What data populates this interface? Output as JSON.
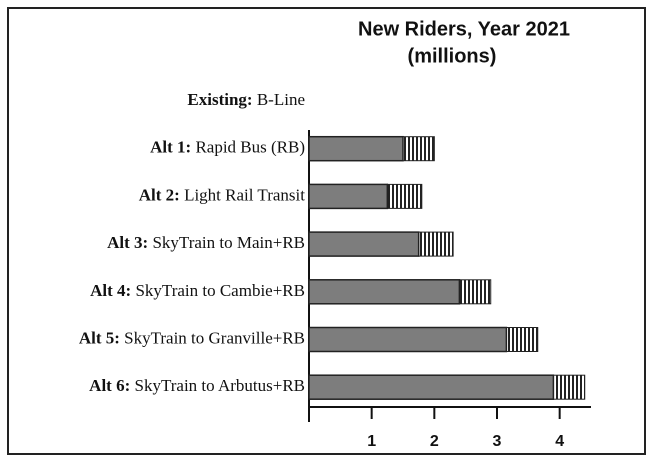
{
  "chart_data": {
    "type": "bar",
    "orientation": "horizontal",
    "title": "New Riders, Year 2021",
    "subtitle": "(millions)",
    "categories": [
      {
        "label": "Existing:",
        "name": "B-Line"
      },
      {
        "label": "Alt 1:",
        "name": "Rapid Bus (RB)"
      },
      {
        "label": "Alt 2:",
        "name": "Light Rail Transit"
      },
      {
        "label": "Alt 3:",
        "name": "SkyTrain to Main+RB"
      },
      {
        "label": "Alt 4:",
        "name": "SkyTrain to Cambie+RB"
      },
      {
        "label": "Alt 5:",
        "name": "SkyTrain to Granville+RB"
      },
      {
        "label": "Alt 6:",
        "name": "SkyTrain to Arbutus+RB"
      }
    ],
    "values": [
      null,
      1.5,
      1.25,
      1.75,
      2.4,
      3.15,
      3.9
    ],
    "upper_values": [
      null,
      2.0,
      1.8,
      2.3,
      2.9,
      3.65,
      4.4
    ],
    "color": "#7d7d7d",
    "xlim": [
      0,
      4.5
    ],
    "xticks": [
      1,
      2,
      3,
      4
    ]
  }
}
